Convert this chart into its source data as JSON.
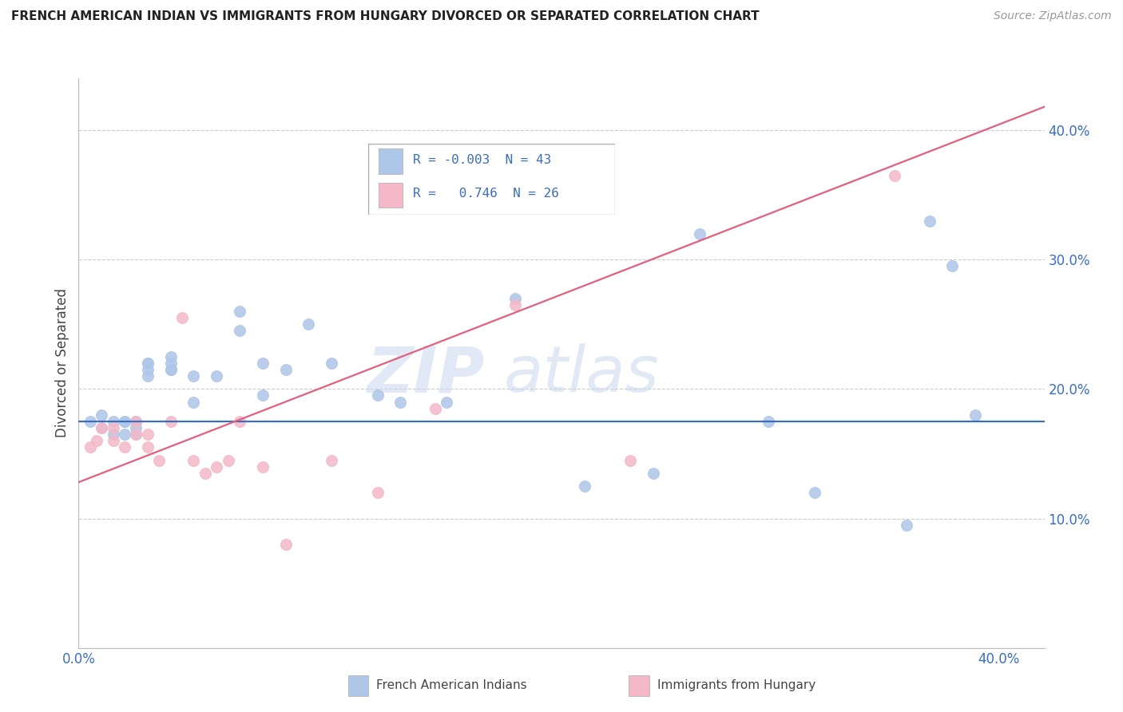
{
  "title": "FRENCH AMERICAN INDIAN VS IMMIGRANTS FROM HUNGARY DIVORCED OR SEPARATED CORRELATION CHART",
  "source": "Source: ZipAtlas.com",
  "ylabel": "Divorced or Separated",
  "legend_label1": "French American Indians",
  "legend_label2": "Immigrants from Hungary",
  "R1": "-0.003",
  "N1": "43",
  "R2": "0.746",
  "N2": "26",
  "xlim": [
    0.0,
    0.42
  ],
  "ylim": [
    0.0,
    0.44
  ],
  "xticks": [
    0.0,
    0.1,
    0.2,
    0.3,
    0.4
  ],
  "yticks": [
    0.1,
    0.2,
    0.3,
    0.4
  ],
  "color_blue": "#aec6e8",
  "color_pink": "#f4b8c8",
  "color_line_blue": "#3a6fbd",
  "color_line_pink": "#e0607e",
  "watermark_zip": "ZIP",
  "watermark_atlas": "atlas",
  "background_color": "#ffffff",
  "grid_color": "#cccccc",
  "blue_scatter_x": [
    0.005,
    0.01,
    0.01,
    0.015,
    0.015,
    0.02,
    0.02,
    0.02,
    0.025,
    0.025,
    0.025,
    0.025,
    0.03,
    0.03,
    0.03,
    0.03,
    0.04,
    0.04,
    0.04,
    0.04,
    0.05,
    0.05,
    0.06,
    0.07,
    0.07,
    0.08,
    0.08,
    0.09,
    0.1,
    0.11,
    0.13,
    0.14,
    0.16,
    0.19,
    0.22,
    0.25,
    0.27,
    0.3,
    0.32,
    0.36,
    0.37,
    0.38,
    0.39
  ],
  "blue_scatter_y": [
    0.175,
    0.18,
    0.17,
    0.175,
    0.165,
    0.175,
    0.165,
    0.175,
    0.175,
    0.17,
    0.165,
    0.175,
    0.21,
    0.22,
    0.215,
    0.22,
    0.215,
    0.22,
    0.215,
    0.225,
    0.21,
    0.19,
    0.21,
    0.245,
    0.26,
    0.22,
    0.195,
    0.215,
    0.25,
    0.22,
    0.195,
    0.19,
    0.19,
    0.27,
    0.125,
    0.135,
    0.32,
    0.175,
    0.12,
    0.095,
    0.33,
    0.295,
    0.18
  ],
  "pink_scatter_x": [
    0.005,
    0.008,
    0.01,
    0.015,
    0.015,
    0.02,
    0.025,
    0.025,
    0.03,
    0.03,
    0.035,
    0.04,
    0.045,
    0.05,
    0.055,
    0.06,
    0.065,
    0.07,
    0.08,
    0.09,
    0.11,
    0.13,
    0.155,
    0.19,
    0.24,
    0.355
  ],
  "pink_scatter_y": [
    0.155,
    0.16,
    0.17,
    0.16,
    0.17,
    0.155,
    0.175,
    0.165,
    0.155,
    0.165,
    0.145,
    0.175,
    0.255,
    0.145,
    0.135,
    0.14,
    0.145,
    0.175,
    0.14,
    0.08,
    0.145,
    0.12,
    0.185,
    0.265,
    0.145,
    0.365
  ],
  "blue_line_x": [
    0.0,
    0.42
  ],
  "blue_line_y": [
    0.175,
    0.175
  ],
  "pink_line_x": [
    0.0,
    0.42
  ],
  "pink_line_y": [
    0.128,
    0.418
  ]
}
